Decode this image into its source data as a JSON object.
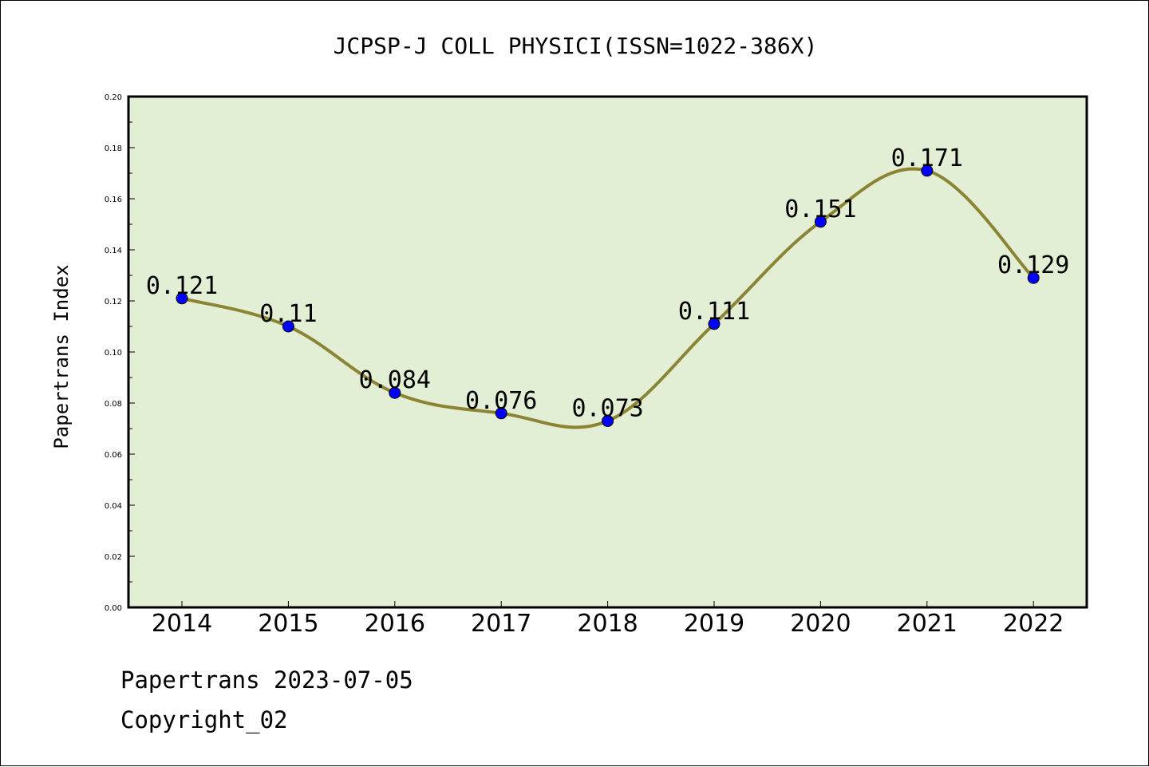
{
  "chart_data": {
    "type": "line",
    "title": "JCPSP-J COLL PHYSICI(ISSN=1022-386X)",
    "xlabel": "",
    "ylabel": "Papertrans Index",
    "categories": [
      "2014",
      "2015",
      "2016",
      "2017",
      "2018",
      "2019",
      "2020",
      "2021",
      "2022"
    ],
    "series": [
      {
        "values": [
          0.121,
          0.11,
          0.084,
          0.076,
          0.073,
          0.111,
          0.151,
          0.171,
          0.129
        ],
        "labels": [
          "0.121",
          "0.11",
          "0.084",
          "0.076",
          "0.073",
          "0.111",
          "0.151",
          "0.171",
          "0.129"
        ]
      }
    ],
    "ylim": [
      0.0,
      0.2
    ],
    "yticks": [
      "0.00",
      "0.02",
      "0.04",
      "0.06",
      "0.08",
      "0.10",
      "0.12",
      "0.14",
      "0.16",
      "0.18",
      "0.20"
    ],
    "grid": false,
    "legend": "none",
    "colors": {
      "plot_background": "#e2efd4",
      "line": "#8b8434",
      "marker": "#0000ff",
      "axes": "#000000"
    }
  },
  "footer": {
    "line1": "Papertrans 2023-07-05",
    "line2": "Copyright_02"
  }
}
